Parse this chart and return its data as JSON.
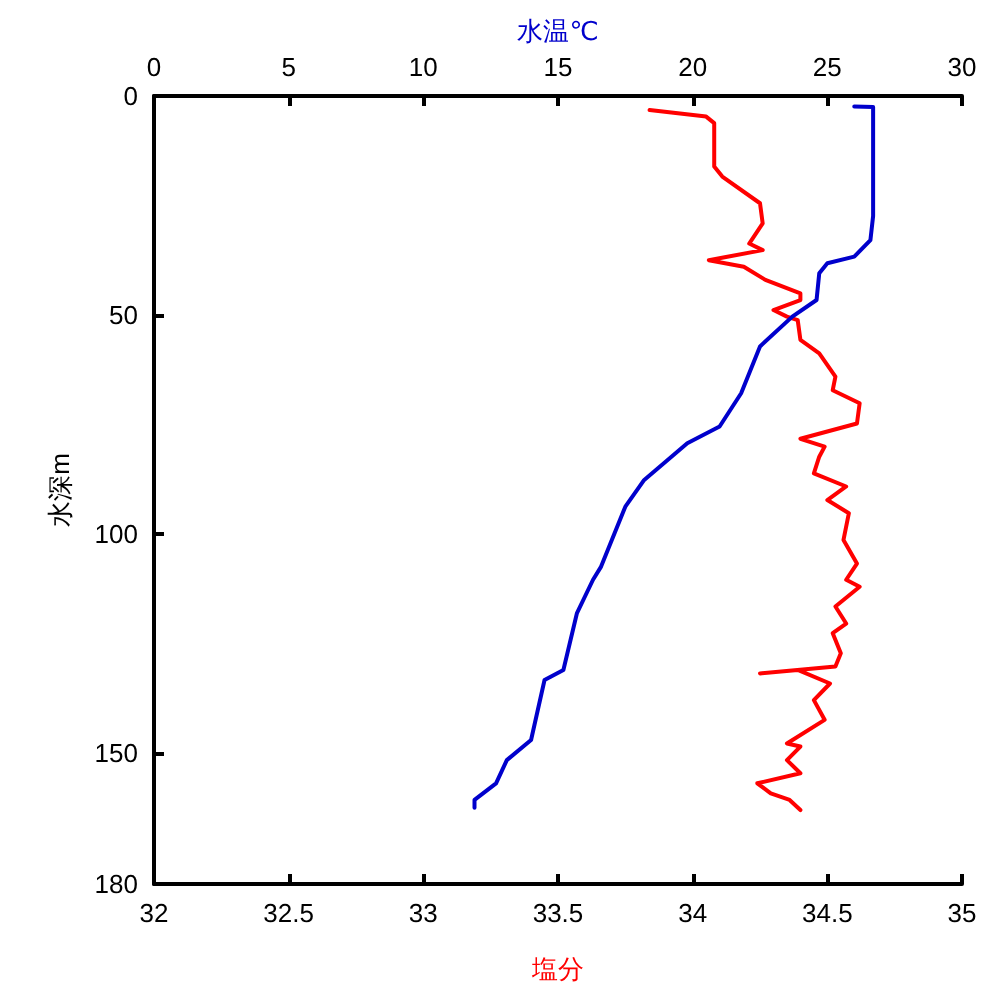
{
  "chart_data": {
    "type": "line",
    "xlabel": "塩分",
    "x2label": "水温℃",
    "ylabel": "水深m",
    "xlim": [
      32,
      35
    ],
    "xticks": [
      32,
      32.5,
      33,
      33.5,
      34,
      34.5,
      35
    ],
    "x2lim": [
      0,
      30
    ],
    "x2ticks": [
      0,
      5,
      10,
      15,
      20,
      25,
      30
    ],
    "ylim": [
      180,
      0
    ],
    "yticks": [
      0,
      50,
      100,
      150,
      180
    ],
    "marker": "none",
    "series": [
      {
        "color": "#ff0000",
        "x": [
          33.84,
          34.05,
          34.08,
          34.08,
          34.11,
          34.25,
          34.26,
          34.21,
          34.26,
          34.06,
          34.19,
          34.27,
          34.4,
          34.4,
          34.3,
          34.35,
          34.39,
          34.4,
          34.47,
          34.53,
          34.52,
          34.62,
          34.61,
          34.4,
          34.49,
          34.47,
          34.45,
          34.57,
          34.5,
          34.58,
          34.56,
          34.61,
          34.57,
          34.62,
          34.53,
          34.57,
          34.52,
          34.55,
          34.53,
          34.25,
          34.39,
          34.51,
          34.45,
          34.49,
          34.35,
          34.4,
          34.35,
          34.4,
          34.24,
          34.29,
          34.36,
          34.4
        ],
        "values": [
          3.2,
          4.7,
          6.2,
          16.1,
          18.4,
          24.5,
          29.1,
          33.7,
          35.2,
          37.5,
          39,
          42,
          45.1,
          46.6,
          48.9,
          50.4,
          51.2,
          55.7,
          58.8,
          64.1,
          67.2,
          70.2,
          74.8,
          78.3,
          80.1,
          82.4,
          86.2,
          89.2,
          92.3,
          95.3,
          101.4,
          106.8,
          110.5,
          112.1,
          116.6,
          120.5,
          122.7,
          127.3,
          130.3,
          131.9,
          131.1,
          134.2,
          138,
          142.5,
          147.9,
          148.6,
          151.7,
          154.7,
          157,
          159.3,
          160.8,
          163.1
        ]
      },
      {
        "color": "#0000cc",
        "axis": "x2",
        "x": [
          26,
          26.7,
          26.7,
          26.6,
          26,
          25,
          24.7,
          24.6,
          23.7,
          22.5,
          21.8,
          21,
          19.8,
          18.2,
          17.5,
          16.6,
          16.3,
          15.7,
          15.2,
          14.5,
          14,
          13.1,
          12.7,
          11.9,
          11.9
        ],
        "values": [
          2.4,
          2.5,
          27.4,
          32.9,
          36.7,
          38.2,
          40.5,
          46.6,
          50.4,
          57.2,
          67.9,
          75.5,
          79.3,
          87.7,
          93.8,
          107.5,
          110.5,
          118.2,
          131.1,
          133.4,
          147.1,
          151.7,
          157,
          160.8,
          162.6
        ]
      }
    ]
  }
}
